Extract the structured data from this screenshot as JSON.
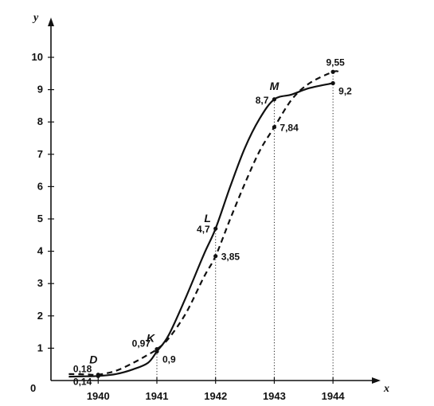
{
  "chart_data": {
    "type": "line",
    "xlabel": "x",
    "ylabel": "y",
    "origin_label": "0",
    "x_ticks": [
      "1940",
      "1941",
      "1942",
      "1943",
      "1944"
    ],
    "y_ticks": [
      "1",
      "2",
      "3",
      "4",
      "5",
      "6",
      "7",
      "8",
      "9",
      "10"
    ],
    "xlim": [
      1939.2,
      1944.5
    ],
    "ylim": [
      0,
      11.2
    ],
    "grid": false,
    "series": [
      {
        "style": "solid",
        "x": [
          1939.5,
          1939.8,
          1940.0,
          1940.3,
          1940.6,
          1940.85,
          1941.0,
          1941.2,
          1941.5,
          1941.8,
          1942.0,
          1942.25,
          1942.5,
          1942.75,
          1943.0,
          1943.3,
          1943.6,
          1944.0
        ],
        "y": [
          0.12,
          0.13,
          0.14,
          0.2,
          0.35,
          0.55,
          0.9,
          1.4,
          2.6,
          3.9,
          4.7,
          6.0,
          7.2,
          8.1,
          8.7,
          8.85,
          9.05,
          9.2
        ]
      },
      {
        "style": "dashed",
        "x": [
          1939.5,
          1939.8,
          1940.0,
          1940.3,
          1940.6,
          1940.85,
          1941.0,
          1941.2,
          1941.5,
          1941.8,
          1942.0,
          1942.25,
          1942.5,
          1942.75,
          1943.0,
          1943.3,
          1943.6,
          1944.0,
          1944.1
        ],
        "y": [
          0.2,
          0.19,
          0.18,
          0.3,
          0.55,
          0.8,
          0.97,
          1.3,
          2.1,
          3.2,
          3.85,
          5.0,
          6.1,
          7.1,
          7.84,
          8.7,
          9.2,
          9.55,
          9.55
        ]
      }
    ],
    "guides_x": [
      "1941",
      "1942",
      "1943",
      "1944"
    ],
    "points": [
      {
        "x": 1940.0,
        "y": 0.14,
        "label": "0,14",
        "anchor": "left-below"
      },
      {
        "x": 1940.0,
        "y": 0.18,
        "label": "0,18",
        "anchor": "left-above"
      },
      {
        "x": 1941.0,
        "y": 0.9,
        "label": "0,9",
        "anchor": "right-below"
      },
      {
        "x": 1941.0,
        "y": 0.97,
        "label": "0,97",
        "anchor": "left-above"
      },
      {
        "x": 1942.0,
        "y": 4.7,
        "label": "4,7",
        "anchor": "left"
      },
      {
        "x": 1942.0,
        "y": 3.85,
        "label": "3,85",
        "anchor": "right"
      },
      {
        "x": 1943.0,
        "y": 8.7,
        "label": "8,7",
        "anchor": "left"
      },
      {
        "x": 1943.0,
        "y": 7.84,
        "label": "7,84",
        "anchor": "right"
      },
      {
        "x": 1944.0,
        "y": 9.2,
        "label": "9,2",
        "anchor": "right-below"
      },
      {
        "x": 1944.0,
        "y": 9.55,
        "label": "9,55",
        "anchor": "above"
      }
    ],
    "point_names": [
      {
        "x": 1940.0,
        "y": 0.14,
        "label": "D"
      },
      {
        "x": 1941.0,
        "y": 0.9,
        "label": "K"
      },
      {
        "x": 1942.0,
        "y": 4.7,
        "label": "L"
      },
      {
        "x": 1943.0,
        "y": 8.7,
        "label": "M"
      }
    ]
  }
}
